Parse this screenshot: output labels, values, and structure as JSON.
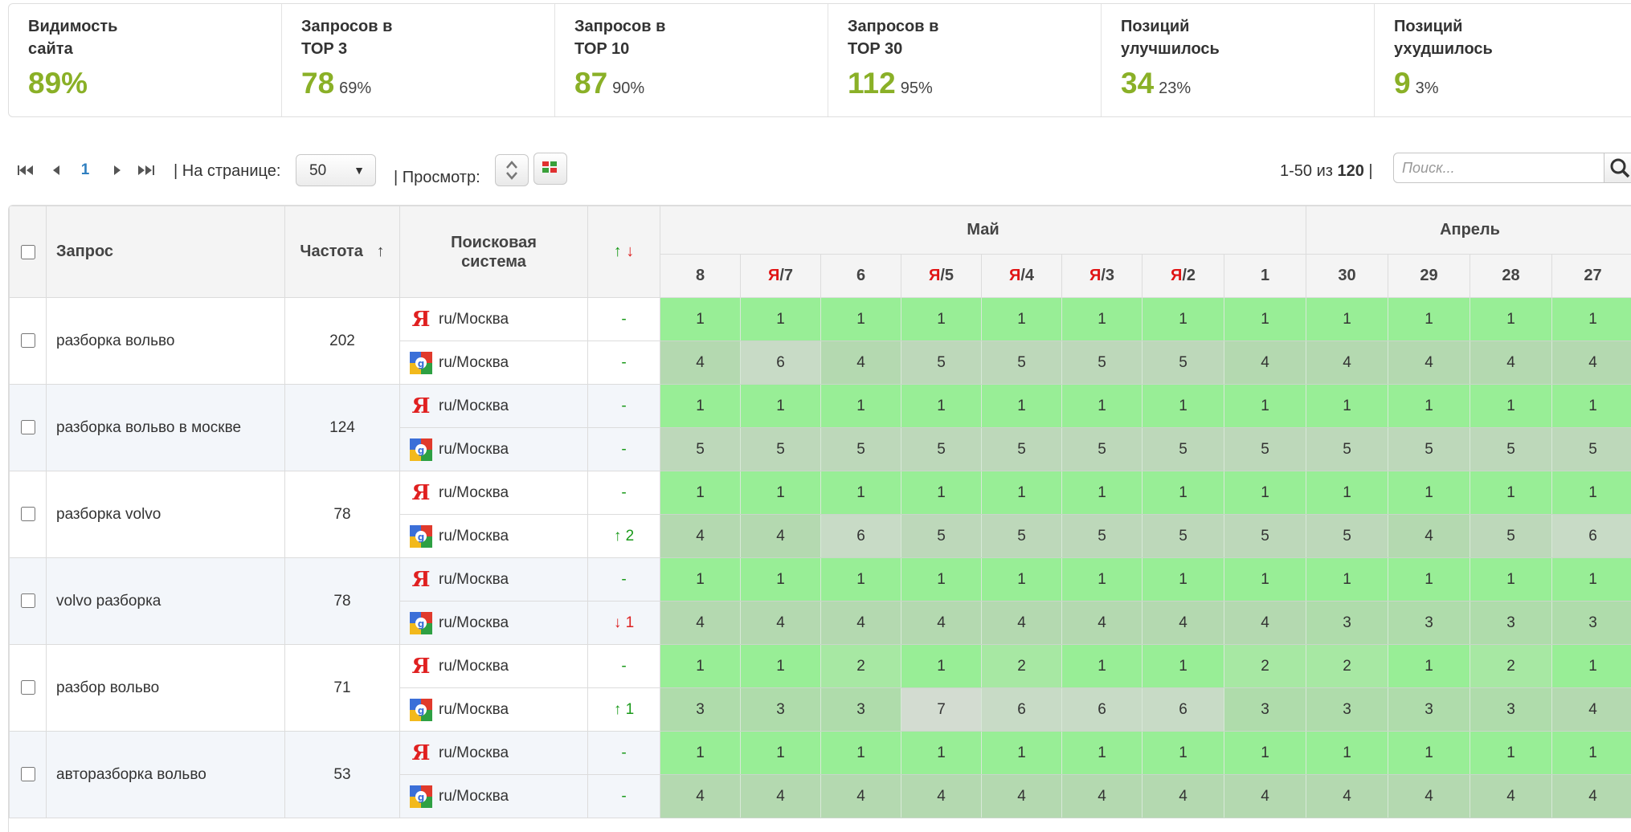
{
  "stats": [
    {
      "title": "Видимость\nсайта",
      "value": "89%",
      "pct": ""
    },
    {
      "title": "Запросов в\nTOP 3",
      "value": "78",
      "pct": "69%"
    },
    {
      "title": "Запросов в\nTOP 10",
      "value": "87",
      "pct": "90%"
    },
    {
      "title": "Запросов в\nTOP 30",
      "value": "112",
      "pct": "95%"
    },
    {
      "title": "Позиций\nулучшилось",
      "value": "34",
      "pct": "23%"
    },
    {
      "title": "Позиций\nухудшилось",
      "value": "9",
      "pct": "3%"
    }
  ],
  "toolbar": {
    "current_page": "1",
    "per_page_label": "| На странице:",
    "per_page_value": "50",
    "view_label": "| Просмотр:",
    "range_prefix": "1-50 из ",
    "range_total": "120",
    "range_suffix": " |",
    "search_placeholder": "Поиск...",
    "sep": "|"
  },
  "table": {
    "col_query": "Запрос",
    "col_freq": "Частота",
    "col_freq_sort": "↑",
    "col_engine": "Поисковая система",
    "col_change_up": "↑",
    "col_change_down": "↓",
    "month_may": "Май",
    "month_april": "Апрель",
    "days": [
      {
        "ya": "",
        "num": "8"
      },
      {
        "ya": "Я",
        "num": "/7"
      },
      {
        "ya": "",
        "num": "6"
      },
      {
        "ya": "Я",
        "num": "/5"
      },
      {
        "ya": "Я",
        "num": "/4"
      },
      {
        "ya": "Я",
        "num": "/3"
      },
      {
        "ya": "Я",
        "num": "/2"
      },
      {
        "ya": "",
        "num": "1"
      },
      {
        "ya": "",
        "num": "30"
      },
      {
        "ya": "",
        "num": "29"
      },
      {
        "ya": "",
        "num": "28"
      },
      {
        "ya": "",
        "num": "27"
      }
    ],
    "rows": [
      {
        "query": "разборка вольво",
        "freq": "202",
        "engines": [
          {
            "engine": "yandex",
            "region": "ru/Москва",
            "change": "-",
            "dir": "",
            "positions": [
              "1",
              "1",
              "1",
              "1",
              "1",
              "1",
              "1",
              "1",
              "1",
              "1",
              "1",
              "1"
            ]
          },
          {
            "engine": "google",
            "region": "ru/Москва",
            "change": "-",
            "dir": "",
            "positions": [
              "4",
              "6",
              "4",
              "5",
              "5",
              "5",
              "5",
              "4",
              "4",
              "4",
              "4",
              "4"
            ]
          }
        ]
      },
      {
        "query": "разборка вольво в москве",
        "freq": "124",
        "engines": [
          {
            "engine": "yandex",
            "region": "ru/Москва",
            "change": "-",
            "dir": "",
            "positions": [
              "1",
              "1",
              "1",
              "1",
              "1",
              "1",
              "1",
              "1",
              "1",
              "1",
              "1",
              "1"
            ]
          },
          {
            "engine": "google",
            "region": "ru/Москва",
            "change": "-",
            "dir": "",
            "positions": [
              "5",
              "5",
              "5",
              "5",
              "5",
              "5",
              "5",
              "5",
              "5",
              "5",
              "5",
              "5"
            ]
          }
        ]
      },
      {
        "query": "разборка volvo",
        "freq": "78",
        "engines": [
          {
            "engine": "yandex",
            "region": "ru/Москва",
            "change": "-",
            "dir": "",
            "positions": [
              "1",
              "1",
              "1",
              "1",
              "1",
              "1",
              "1",
              "1",
              "1",
              "1",
              "1",
              "1"
            ]
          },
          {
            "engine": "google",
            "region": "ru/Москва",
            "change": "↑ 2",
            "dir": "up",
            "positions": [
              "4",
              "4",
              "6",
              "5",
              "5",
              "5",
              "5",
              "5",
              "5",
              "4",
              "5",
              "6"
            ]
          }
        ]
      },
      {
        "query": "volvo разборка",
        "freq": "78",
        "engines": [
          {
            "engine": "yandex",
            "region": "ru/Москва",
            "change": "-",
            "dir": "",
            "positions": [
              "1",
              "1",
              "1",
              "1",
              "1",
              "1",
              "1",
              "1",
              "1",
              "1",
              "1",
              "1"
            ]
          },
          {
            "engine": "google",
            "region": "ru/Москва",
            "change": "↓ 1",
            "dir": "down",
            "positions": [
              "4",
              "4",
              "4",
              "4",
              "4",
              "4",
              "4",
              "4",
              "3",
              "3",
              "3",
              "3"
            ]
          }
        ]
      },
      {
        "query": "разбор вольво",
        "freq": "71",
        "engines": [
          {
            "engine": "yandex",
            "region": "ru/Москва",
            "change": "-",
            "dir": "",
            "positions": [
              "1",
              "1",
              "2",
              "1",
              "2",
              "1",
              "1",
              "2",
              "2",
              "1",
              "2",
              "1"
            ]
          },
          {
            "engine": "google",
            "region": "ru/Москва",
            "change": "↑ 1",
            "dir": "up",
            "positions": [
              "3",
              "3",
              "3",
              "7",
              "6",
              "6",
              "6",
              "3",
              "3",
              "3",
              "3",
              "4"
            ]
          }
        ]
      },
      {
        "query": "авторазборка вольво",
        "freq": "53",
        "engines": [
          {
            "engine": "yandex",
            "region": "ru/Москва",
            "change": "-",
            "dir": "",
            "positions": [
              "1",
              "1",
              "1",
              "1",
              "1",
              "1",
              "1",
              "1",
              "1",
              "1",
              "1",
              "1"
            ]
          },
          {
            "engine": "google",
            "region": "ru/Москва",
            "change": "-",
            "dir": "",
            "positions": [
              "4",
              "4",
              "4",
              "4",
              "4",
              "4",
              "4",
              "4",
              "4",
              "4",
              "4",
              "4"
            ]
          }
        ]
      }
    ]
  },
  "colors": {
    "accent": "#8ab027",
    "link": "#2f7fc0",
    "up": "#1a9a1a",
    "down": "#dd2222",
    "yandex": "#e01515"
  }
}
